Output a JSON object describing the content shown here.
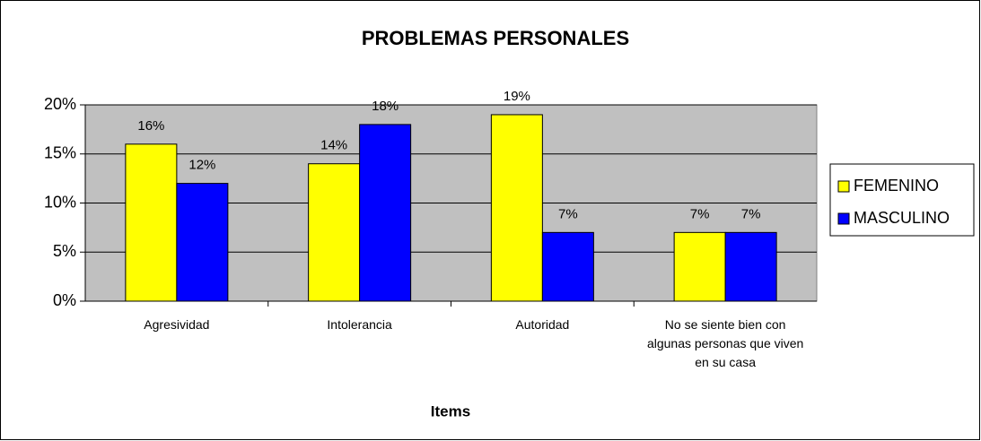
{
  "chart_data": {
    "type": "bar",
    "title": "PROBLEMAS PERSONALES",
    "x_label": "Items",
    "categories": [
      "Agresividad",
      "Intolerancia",
      "Autoridad",
      "No se siente bien con algunas personas que viven en su casa"
    ],
    "series": [
      {
        "name": "FEMENINO",
        "color": "#ffff00",
        "values": [
          16,
          14,
          19,
          7
        ],
        "value_labels": [
          "16%",
          "14%",
          "19%",
          "7%"
        ]
      },
      {
        "name": "MASCULINO",
        "color": "#0000ff",
        "values": [
          12,
          18,
          7,
          7
        ],
        "value_labels": [
          "12%",
          "18%",
          "7%",
          "7%"
        ]
      }
    ],
    "ylim": [
      0,
      20
    ],
    "yticks": [
      {
        "value": 0,
        "label": "0%"
      },
      {
        "value": 5,
        "label": "5%"
      },
      {
        "value": 10,
        "label": "10%"
      },
      {
        "value": 15,
        "label": "15%"
      },
      {
        "value": 20,
        "label": "20%"
      }
    ],
    "grid": true,
    "legend": "right"
  }
}
